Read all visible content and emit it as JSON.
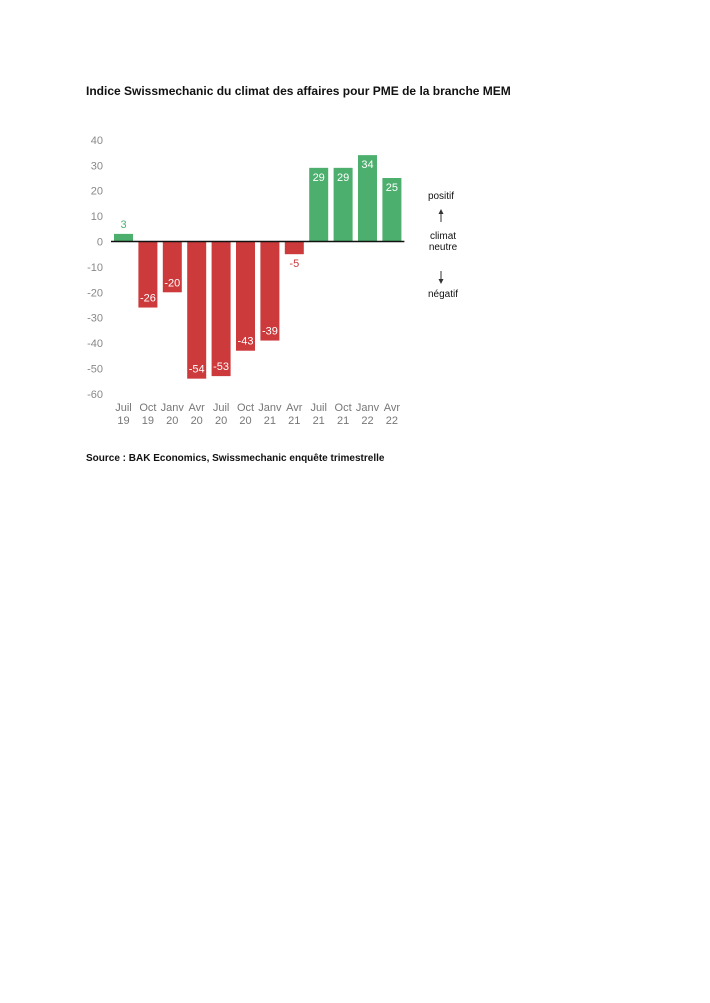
{
  "title": "Indice Swissmechanic du climat des affaires pour PME de la branche MEM",
  "source": "Source : BAK Economics, Swissmechanic enquête trimestrelle",
  "colors": {
    "positive": "#4caf6e",
    "negative": "#cc3a3c",
    "axis": "#111111",
    "tick": "#888888"
  },
  "legend": {
    "positive": "positif",
    "neutral_line1": "climat",
    "neutral_line2": "neutre",
    "negative": "négatif"
  },
  "chart_data": {
    "type": "bar",
    "categories": [
      [
        "Juil",
        "19"
      ],
      [
        "Oct",
        "19"
      ],
      [
        "Janv",
        "20"
      ],
      [
        "Avr",
        "20"
      ],
      [
        "Juil",
        "20"
      ],
      [
        "Oct",
        "20"
      ],
      [
        "Janv",
        "21"
      ],
      [
        "Avr",
        "21"
      ],
      [
        "Juil",
        "21"
      ],
      [
        "Oct",
        "21"
      ],
      [
        "Janv",
        "22"
      ],
      [
        "Avr",
        "22"
      ]
    ],
    "values": [
      3,
      -26,
      -20,
      -54,
      -53,
      -43,
      -39,
      -5,
      29,
      29,
      34,
      25
    ],
    "yticks": [
      40,
      30,
      20,
      10,
      0,
      -10,
      -20,
      -30,
      -40,
      -50,
      -60
    ],
    "ylim": [
      -60,
      40
    ],
    "grid": false,
    "legend_position": "right"
  }
}
